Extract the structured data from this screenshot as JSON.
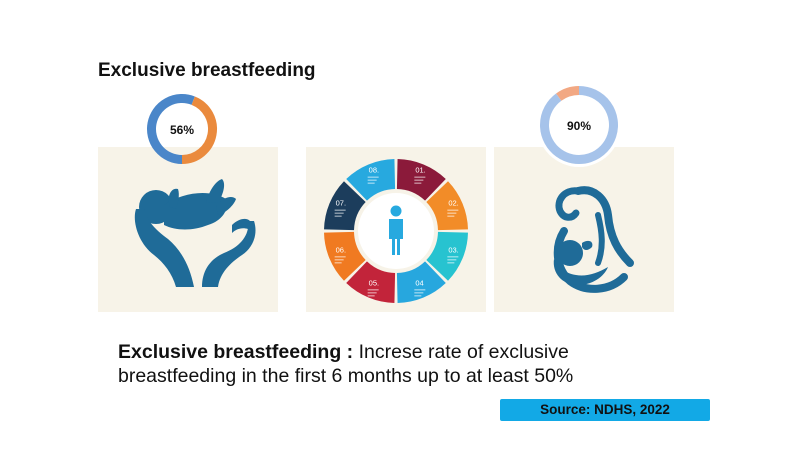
{
  "title": "Exclusive breastfeeding",
  "chart_data": [
    {
      "type": "pie",
      "values": [
        56,
        44
      ],
      "label": "56%",
      "colors": [
        "#4a86c9",
        "#ea8a3d"
      ]
    },
    {
      "type": "pie",
      "values": [
        90,
        10
      ],
      "label": "90%",
      "colors": [
        "#a6c3ea",
        "#f2a883"
      ]
    }
  ],
  "infographic": {
    "segments": [
      "01.",
      "02.",
      "03.",
      "04",
      "05.",
      "06.",
      "07.",
      "08."
    ],
    "colors": [
      "#8b1a3a",
      "#f28c28",
      "#27c3d0",
      "#27a7de",
      "#c2243a",
      "#f07a21",
      "#1c3d5c",
      "#27a9df"
    ]
  },
  "caption": {
    "bold": "Exclusive breastfeeding :",
    "text": " Increse rate of exclusive breastfeeding in the first 6 months up to at least 50%"
  },
  "source": "Source: NDHS, 2022",
  "icon_color": "#1f6b98"
}
